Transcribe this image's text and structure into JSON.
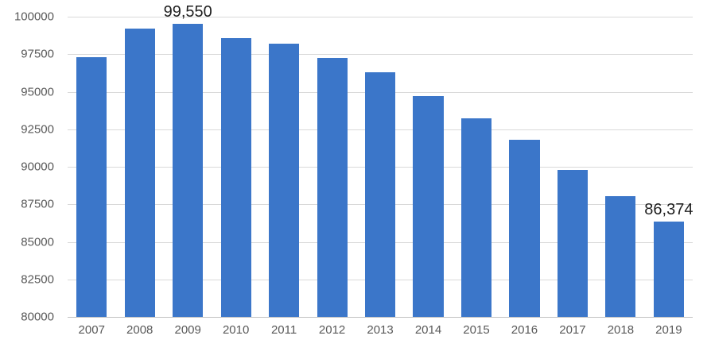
{
  "chart_data": {
    "type": "bar",
    "title": "",
    "xlabel": "",
    "ylabel": "",
    "categories": [
      "2007",
      "2008",
      "2009",
      "2010",
      "2011",
      "2012",
      "2013",
      "2014",
      "2015",
      "2016",
      "2017",
      "2018",
      "2019"
    ],
    "values": [
      97300,
      99200,
      99550,
      98550,
      98200,
      97250,
      96300,
      94700,
      93250,
      91800,
      89800,
      88050,
      86374
    ],
    "bar_labels": [
      "",
      "",
      "99,550",
      "",
      "",
      "",
      "",
      "",
      "",
      "",
      "",
      "",
      "86,374"
    ],
    "ylim": [
      80000,
      100000
    ],
    "ytick_step": 2500,
    "yticks": [
      "100000",
      "97500",
      "95000",
      "92500",
      "90000",
      "87500",
      "85000",
      "82500",
      "80000"
    ],
    "grid": "horizontal",
    "legend": "none",
    "colors": {
      "bar": "#3B76C9",
      "gridline": "#D9D9D9",
      "axis_line": "#C0C0C0",
      "tick_label": "#595959",
      "data_label": "#1F1F1F",
      "background": "#FFFFFF"
    }
  }
}
